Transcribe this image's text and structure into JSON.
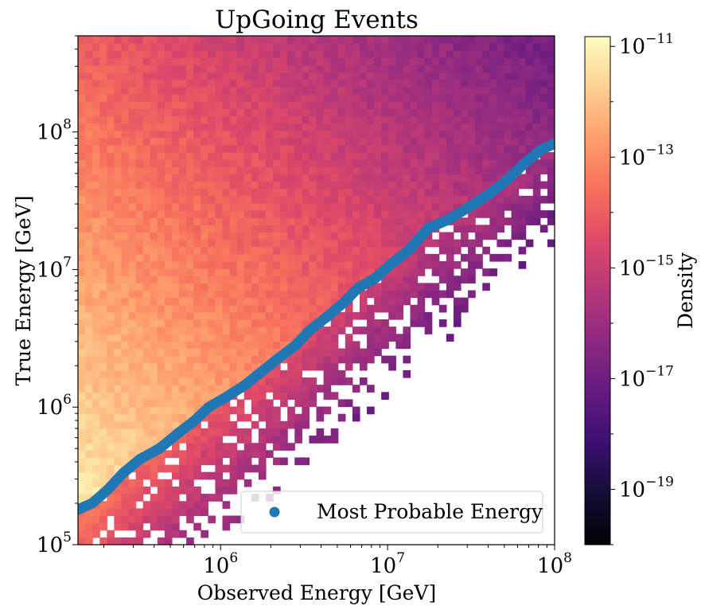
{
  "chart_data": {
    "type": "heatmap",
    "title": "UpGoing Events",
    "xlabel": "Observed Energy [GeV]",
    "ylabel": "True Energy [GeV]",
    "x_scale": "log",
    "y_scale": "log",
    "xlim": [
      140000,
      100000000
    ],
    "ylim": [
      100000,
      500000000
    ],
    "x_ticks": [
      {
        "base": "10",
        "exp": "6",
        "value": 1000000
      },
      {
        "base": "10",
        "exp": "7",
        "value": 10000000
      },
      {
        "base": "10",
        "exp": "8",
        "value": 100000000
      }
    ],
    "y_ticks": [
      {
        "base": "10",
        "exp": "5",
        "value": 100000
      },
      {
        "base": "10",
        "exp": "6",
        "value": 1000000
      },
      {
        "base": "10",
        "exp": "7",
        "value": 10000000
      },
      {
        "base": "10",
        "exp": "8",
        "value": 100000000
      }
    ],
    "colormap": "magma",
    "colorbar": {
      "label": "Density",
      "scale": "log",
      "range": [
        1e-20,
        1.5e-11
      ],
      "ticks": [
        {
          "base": "10",
          "exp": "−11",
          "value": -11
        },
        {
          "base": "10",
          "exp": "−13",
          "value": -13
        },
        {
          "base": "10",
          "exp": "−15",
          "value": -15
        },
        {
          "base": "10",
          "exp": "−17",
          "value": -17
        },
        {
          "base": "10",
          "exp": "−19",
          "value": -19
        }
      ]
    },
    "series": [
      {
        "name": "Most Probable Energy",
        "type": "line",
        "color": "#1f77b4",
        "points": [
          [
            140000,
            180000
          ],
          [
            170000,
            200000
          ],
          [
            210000,
            250000
          ],
          [
            260000,
            330000
          ],
          [
            330000,
            420000
          ],
          [
            430000,
            500000
          ],
          [
            560000,
            650000
          ],
          [
            700000,
            800000
          ],
          [
            850000,
            1000000
          ],
          [
            1100000,
            1200000
          ],
          [
            1400000,
            1450000
          ],
          [
            1800000,
            1850000
          ],
          [
            2200000,
            2250000
          ],
          [
            2800000,
            2800000
          ],
          [
            3400000,
            3600000
          ],
          [
            4300000,
            4500000
          ],
          [
            5500000,
            5800000
          ],
          [
            6700000,
            7400000
          ],
          [
            8500000,
            8700000
          ],
          [
            10500000,
            11000000
          ],
          [
            13500000,
            14000000
          ],
          [
            17500000,
            20000000
          ],
          [
            23000000,
            23000000
          ],
          [
            30000000,
            28000000
          ],
          [
            40000000,
            35000000
          ],
          [
            52000000,
            45000000
          ],
          [
            67000000,
            60000000
          ],
          [
            84000000,
            75000000
          ],
          [
            100000000,
            82000000
          ]
        ]
      }
    ],
    "legend": {
      "position": "lower-right",
      "marker": "circle",
      "marker_color": "#1f77b4"
    }
  }
}
